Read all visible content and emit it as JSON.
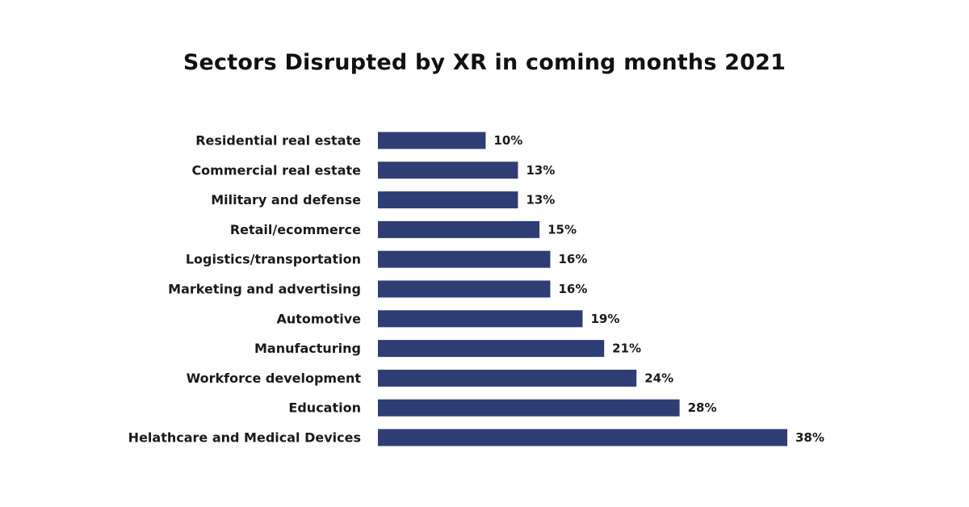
{
  "chart_data": {
    "type": "bar",
    "orientation": "horizontal",
    "title": "Sectors Disrupted by XR in coming months 2021",
    "categories": [
      "Residential real estate",
      "Commercial real estate",
      "Military and defense",
      "Retail/ecommerce",
      "Logistics/transportation",
      "Marketing and advertising",
      "Automotive",
      "Manufacturing",
      "Workforce development",
      "Education",
      "Helathcare and Medical Devices"
    ],
    "values": [
      10,
      13,
      13,
      15,
      16,
      16,
      19,
      21,
      24,
      28,
      38
    ],
    "value_labels": [
      "10%",
      "13%",
      "13%",
      "15%",
      "16%",
      "16%",
      "19%",
      "21%",
      "24%",
      "28%",
      "38%"
    ],
    "unit": "%",
    "xlim": [
      0,
      38
    ],
    "grid": false,
    "legend": "none",
    "bar_color": "#2e3e75"
  }
}
